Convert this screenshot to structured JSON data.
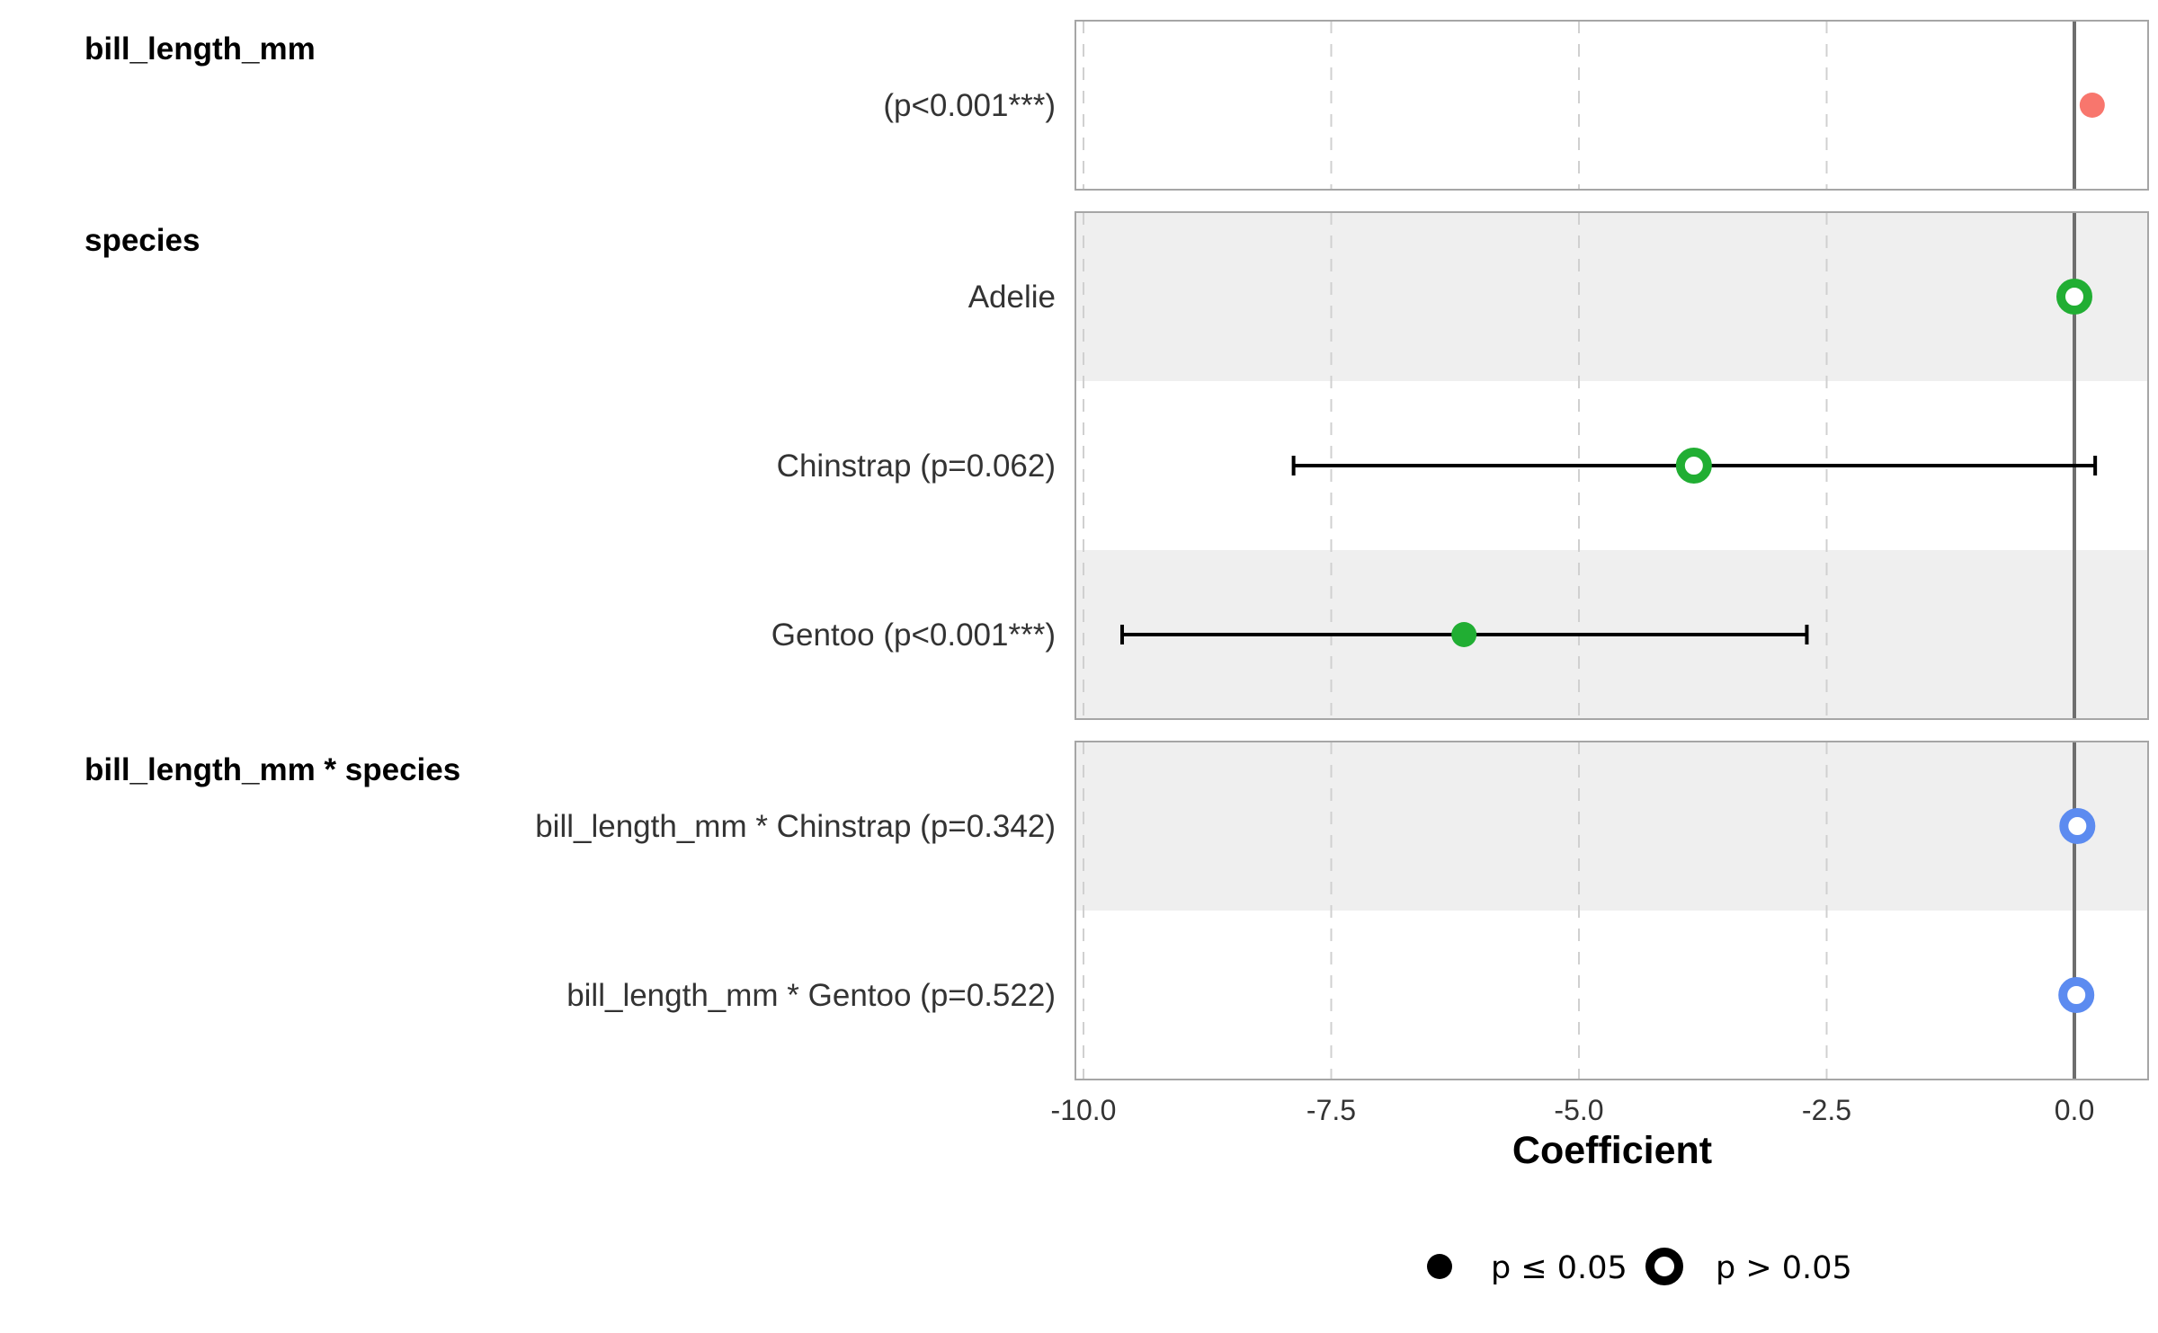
{
  "chart_data": {
    "type": "scatter",
    "subtype": "coefficient-forest-plot",
    "xlabel": "Coefficient",
    "xlim": [
      -10.1,
      0.72
    ],
    "x_ticks": [
      "-10.0",
      "-7.5",
      "-5.0",
      "-2.5",
      "0.0"
    ],
    "x_tick_values": [
      -10.0,
      -7.5,
      -5.0,
      -2.5,
      0.0
    ],
    "reference_line": 0,
    "grid": "vertical dashed",
    "legend_position": "bottom",
    "legend": [
      {
        "label": "p ≤ 0.05",
        "marker": "filled"
      },
      {
        "label": "p > 0.05",
        "marker": "hollow"
      }
    ],
    "groups": [
      {
        "title": "bill_length_mm",
        "color": "#F8766D",
        "terms": [
          {
            "label": "(p<0.001***)",
            "estimate": 0.18,
            "ci": null,
            "significant": true
          }
        ]
      },
      {
        "title": "species",
        "color": "#21AE33",
        "terms": [
          {
            "label": "Adelie",
            "estimate": 0.0,
            "ci": null,
            "significant": false
          },
          {
            "label": "Chinstrap (p=0.062)",
            "estimate": -3.84,
            "ci": [
              -7.88,
              0.21
            ],
            "significant": false
          },
          {
            "label": "Gentoo (p<0.001***)",
            "estimate": -6.16,
            "ci": [
              -9.61,
              -2.7
            ],
            "significant": true
          }
        ]
      },
      {
        "title": "bill_length_mm * species",
        "color": "#5C8BF0",
        "terms": [
          {
            "label": "bill_length_mm * Chinstrap (p=0.342)",
            "estimate": 0.03,
            "ci": null,
            "significant": false
          },
          {
            "label": "bill_length_mm * Gentoo (p=0.522)",
            "estimate": 0.02,
            "ci": null,
            "significant": false
          }
        ]
      }
    ]
  }
}
